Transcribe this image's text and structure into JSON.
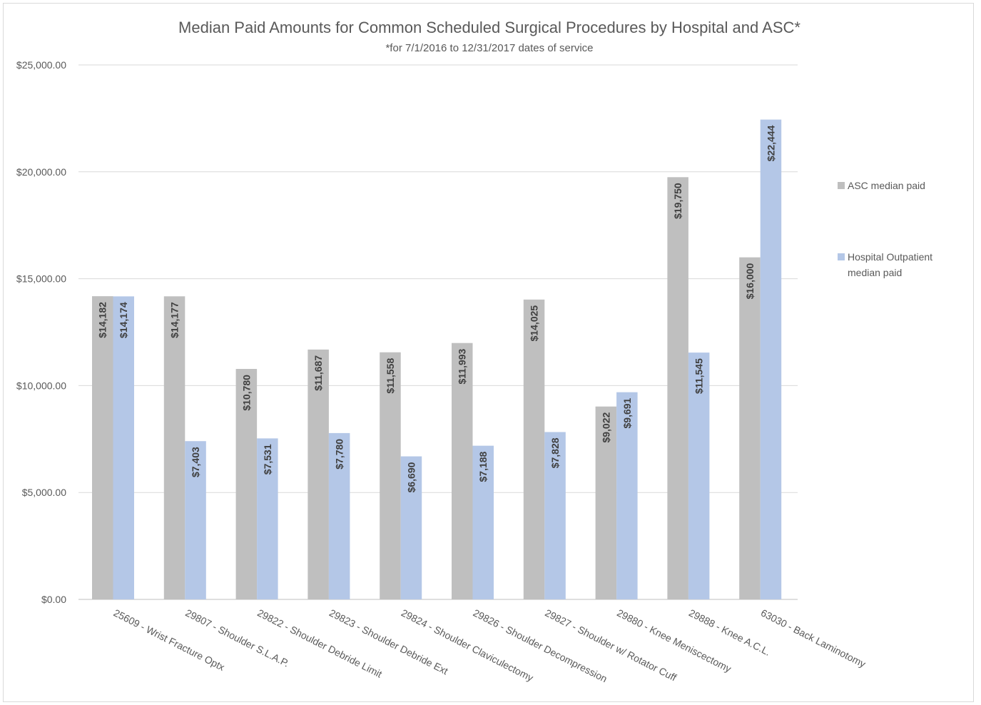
{
  "chart_data": {
    "type": "bar",
    "title": "Median Paid Amounts for Common Scheduled Surgical Procedures by Hospital and ASC*",
    "subtitle": "*for 7/1/2016 to 12/31/2017 dates of service",
    "xlabel": "",
    "ylabel": "",
    "ylim": [
      0,
      25000
    ],
    "y_ticks": [
      "$0.00",
      "$5,000.00",
      "$10,000.00",
      "$15,000.00",
      "$20,000.00",
      "$25,000.00"
    ],
    "y_tick_values": [
      0,
      5000,
      10000,
      15000,
      20000,
      25000
    ],
    "grid": true,
    "legend_position": "right",
    "categories": [
      "25609 - Wrist Fracture Optx",
      "29807 - Shoulder S.L.A.P.",
      "29822 - Shoulder Debride Limit",
      "29823 - Shoulder Debride Ext",
      "29824 - Shoulder Claviculectomy",
      "29826 - Shoulder Decompression",
      "29827 - Shoulder w/ Rotator Cuff",
      "29880 - Knee Meniscectomy",
      "29888 - Knee A.C.L.",
      "63030 - Back Laminotomy"
    ],
    "series": [
      {
        "name": "ASC median paid",
        "color": "#bfbfbf",
        "values": [
          14182,
          14177,
          10780,
          11687,
          11558,
          11993,
          14025,
          9022,
          19750,
          16000
        ],
        "labels": [
          "$14,182",
          "$14,177",
          "$10,780",
          "$11,687",
          "$11,558",
          "$11,993",
          "$14,025",
          "$9,022",
          "$19,750",
          "$16,000"
        ]
      },
      {
        "name": "Hospital Outpatient median paid",
        "color": "#b4c7e7",
        "values": [
          14174,
          7403,
          7531,
          7780,
          6690,
          7188,
          7828,
          9691,
          11545,
          22444
        ],
        "labels": [
          "$14,174",
          "$7,403",
          "$7,531",
          "$7,780",
          "$6,690",
          "$7,188",
          "$7,828",
          "$9,691",
          "$11,545",
          "$22,444"
        ]
      }
    ],
    "legend": [
      {
        "lines": [
          "ASC median paid"
        ],
        "color": "#bfbfbf"
      },
      {
        "lines": [
          "Hospital Outpatient",
          "median paid"
        ],
        "color": "#b4c7e7"
      }
    ],
    "gridline_color": "#d9d9d9",
    "axis_color": "#bfbfbf"
  }
}
